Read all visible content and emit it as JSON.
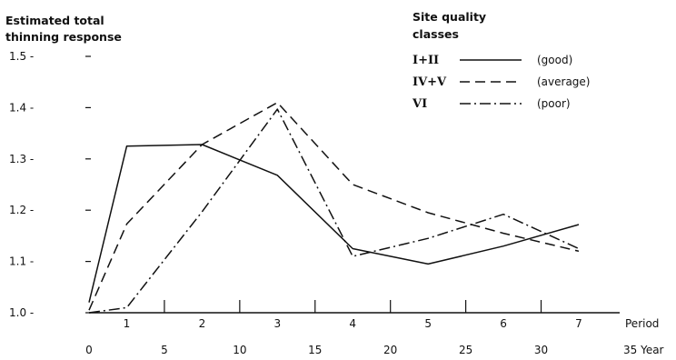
{
  "chart_data": {
    "type": "line",
    "ylabel_lines": [
      "Estimated total",
      "thinning response"
    ],
    "x_period_label": "Period",
    "x_year_label": "35 Year",
    "y_ticks": [
      "1.0",
      "1.1",
      "1.2",
      "1.3",
      "1.4",
      "1.5"
    ],
    "ylim": [
      1.0,
      1.5
    ],
    "period_ticks": [
      "1",
      "2",
      "3",
      "4",
      "5",
      "6",
      "7"
    ],
    "year_ticks": [
      "0",
      "5",
      "10",
      "15",
      "20",
      "25",
      "30"
    ],
    "xlim_years": [
      0,
      35
    ],
    "legend_title_lines": [
      "Site quality",
      "classes"
    ],
    "legend_placement": "top-right",
    "grid": false,
    "series": [
      {
        "name": "I+II",
        "desc": "(good)",
        "dash": "solid",
        "x": [
          0,
          2.5,
          7.5,
          12.5,
          17.5,
          22.5,
          27.5,
          32.5
        ],
        "values": [
          1.02,
          1.325,
          1.328,
          1.268,
          1.125,
          1.095,
          1.13,
          1.172
        ]
      },
      {
        "name": "IV+V",
        "desc": "(average)",
        "dash": "dashed",
        "x": [
          0,
          2.5,
          7.5,
          12.5,
          17.5,
          22.5,
          27.5,
          32.5
        ],
        "values": [
          1.005,
          1.173,
          1.328,
          1.41,
          1.25,
          1.195,
          1.155,
          1.12
        ]
      },
      {
        "name": "VI",
        "desc": "(poor)",
        "dash": "dashdot",
        "x": [
          0,
          2.5,
          7.5,
          12.5,
          17.5,
          22.5,
          27.5,
          32.5
        ],
        "values": [
          1.0,
          1.01,
          1.197,
          1.397,
          1.11,
          1.145,
          1.192,
          1.125
        ]
      }
    ]
  }
}
